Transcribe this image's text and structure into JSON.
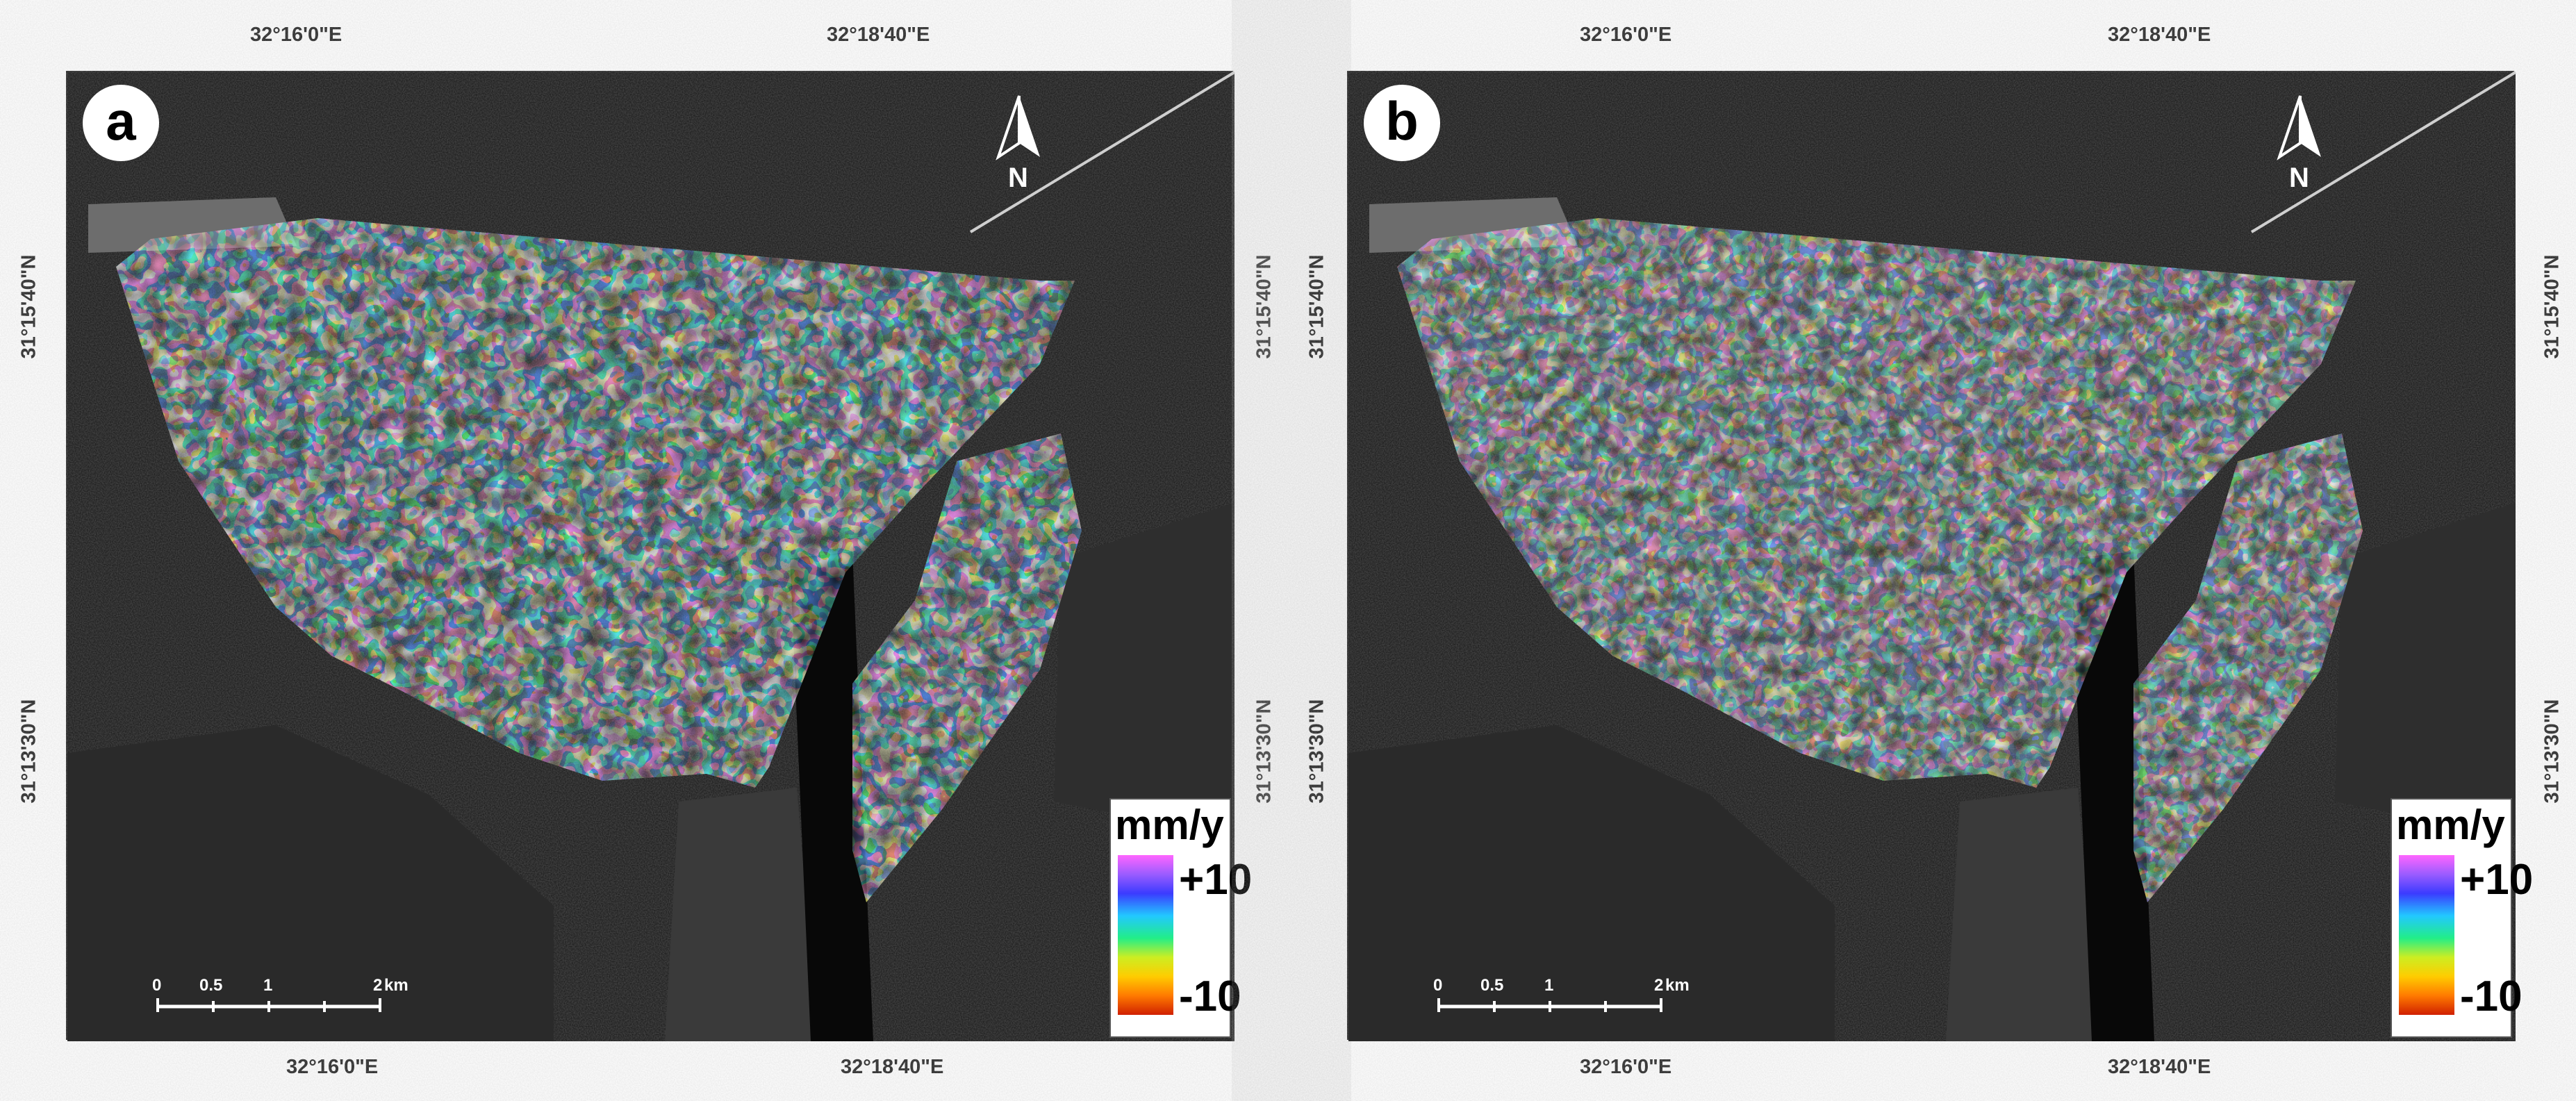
{
  "panels": [
    {
      "label": "a",
      "top_coords": [
        "32°16'0\"E",
        "32°18'40\"E"
      ],
      "bottom_coords": [
        "32°16'0\"E",
        "32°18'40\"E"
      ],
      "left_coords": [
        "31°15'40\"N",
        "31°13'30\"N"
      ],
      "right_coords": [
        "31°15'40\"N",
        "31°13'30\"N"
      ],
      "north_label": "N",
      "legend": {
        "unit": "mm/y",
        "max_label": "+10",
        "min_label": "-10"
      },
      "scale": {
        "labels": [
          "0",
          "0.5",
          "1",
          "2",
          "km"
        ]
      }
    },
    {
      "label": "b",
      "top_coords": [
        "32°16'0\"E",
        "32°18'40\"E"
      ],
      "bottom_coords": [
        "32°16'0\"E",
        "32°18'40\"E"
      ],
      "left_coords": [
        "31°15'40\"N",
        "31°13'30\"N"
      ],
      "right_coords": [
        "31°15'40\"N",
        "31°13'30\"N"
      ],
      "north_label": "N",
      "legend": {
        "unit": "mm/y",
        "max_label": "+10",
        "min_label": "-10"
      },
      "scale": {
        "labels": [
          "0",
          "0.5",
          "1",
          "2",
          "km"
        ]
      }
    }
  ],
  "colors": {
    "background": "#0e0e0e",
    "velocity_scale": [
      "#ff66ff",
      "#9b5cff",
      "#3b3bff",
      "#22c8ff",
      "#22ee88",
      "#ccee22",
      "#ffcc00",
      "#ff7a00",
      "#d02000"
    ]
  }
}
